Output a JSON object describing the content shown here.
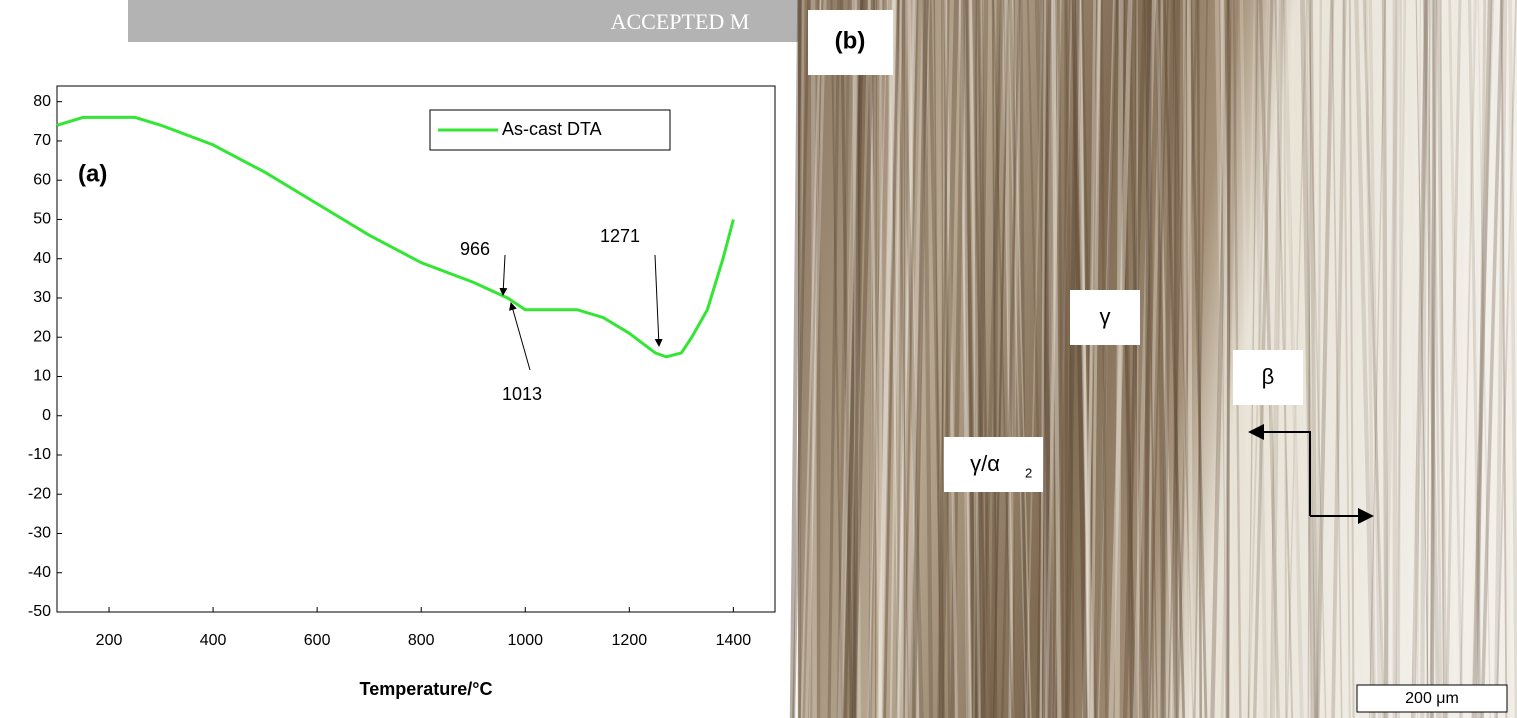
{
  "header": {
    "banner": "ACCEPTED M"
  },
  "chart_data": {
    "type": "line",
    "panel_label": "(a)",
    "x_label": "Temperature/°C",
    "x": [
      100,
      150,
      200,
      250,
      300,
      400,
      500,
      600,
      700,
      800,
      900,
      966,
      1000,
      1013,
      1050,
      1100,
      1150,
      1200,
      1250,
      1271,
      1300,
      1320,
      1350,
      1380,
      1400
    ],
    "series": [
      {
        "name": "As-cast DTA",
        "color": "#33e633",
        "values": [
          74,
          76,
          76,
          76,
          74,
          69,
          62,
          54,
          46,
          39,
          34,
          30,
          27,
          27,
          27,
          27,
          25,
          21,
          16,
          15,
          16,
          20,
          27,
          40,
          50
        ]
      }
    ],
    "xlim": [
      100,
      1480
    ],
    "ylim": [
      -50,
      84
    ],
    "xticks": [
      200,
      400,
      600,
      800,
      1000,
      1200,
      1400
    ],
    "yticks": [
      -50,
      -40,
      -30,
      -20,
      -10,
      0,
      10,
      20,
      30,
      40,
      50,
      60,
      70,
      80
    ],
    "annotations": [
      "966",
      "1013",
      "1271"
    ],
    "legend": "upper right"
  },
  "micrograph": {
    "panel_label": "(b)",
    "phase_gamma": "γ",
    "phase_beta": "β",
    "phase_gamma_alpha": "γ/α",
    "subscript": "2",
    "scale_bar": "200 μm"
  }
}
